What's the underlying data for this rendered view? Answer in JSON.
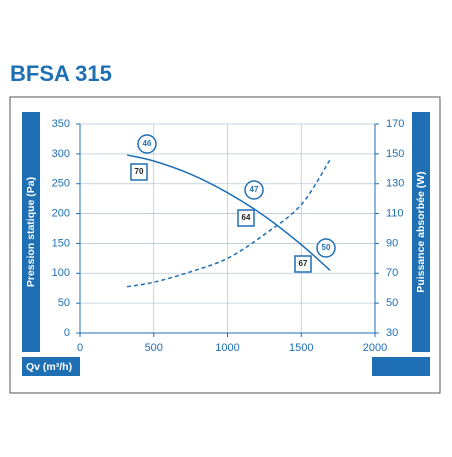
{
  "chart_data": {
    "type": "line",
    "title": "BFSA 315",
    "ylabel": "Pression statique (Pa)",
    "y2label": "Puissance absorbée (W)",
    "xlabel": "Qv (m³/h)",
    "x": [
      319,
      500,
      750,
      1000,
      1250,
      1500,
      1695
    ],
    "series": [
      {
        "color": "#1f6fb5",
        "values": [
          298,
          288,
          266,
          235,
          196,
          148,
          105
        ]
      },
      {
        "color": "#1f6fb5",
        "axis": "y2",
        "dashed": true,
        "values": [
          61,
          64,
          71,
          80,
          96,
          116,
          146
        ]
      }
    ],
    "xlim": [
      0,
      2000
    ],
    "xticks": [
      0,
      500,
      1000,
      1500,
      2000
    ],
    "ylim": [
      0,
      350
    ],
    "yticks": [
      0,
      50,
      100,
      150,
      200,
      250,
      300,
      350
    ],
    "y2lim": [
      30,
      170
    ],
    "y2ticks": [
      30,
      50,
      70,
      90,
      110,
      130,
      150,
      170
    ],
    "grid": true,
    "annotations": {
      "circles": [
        46,
        47,
        50
      ],
      "squares": [
        70,
        64,
        67
      ]
    }
  }
}
